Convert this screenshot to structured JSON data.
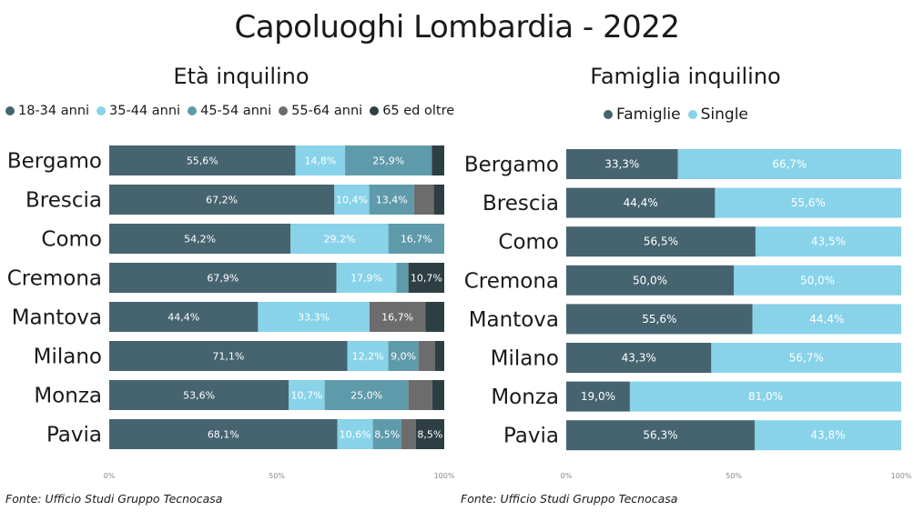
{
  "page": {
    "title": "Capoluoghi Lombardia - 2022"
  },
  "sources": {
    "left": "Fonte: Ufficio Studi Gruppo Tecnocasa",
    "right": "Fonte: Ufficio Studi Gruppo Tecnocasa"
  },
  "chart_data": [
    {
      "type": "bar",
      "orientation": "horizontal",
      "stacked": "percent",
      "title": "Età inquilino",
      "legend_position": "top",
      "categories": [
        "Bergamo",
        "Brescia",
        "Como",
        "Cremona",
        "Mantova",
        "Milano",
        "Monza",
        "Pavia"
      ],
      "series": [
        {
          "name": "18-34 anni",
          "color": "#466470",
          "values": [
            55.6,
            67.2,
            54.2,
            67.9,
            44.4,
            71.1,
            53.6,
            68.1
          ],
          "labels": [
            "55,6%",
            "67,2%",
            "54,2%",
            "67,9%",
            "44,4%",
            "71,1%",
            "53,6%",
            "68,1%"
          ]
        },
        {
          "name": "35-44 anni",
          "color": "#88d3e9",
          "values": [
            14.8,
            10.4,
            29.2,
            17.9,
            33.3,
            12.2,
            10.7,
            10.6
          ],
          "labels": [
            "14,8%",
            "10,4%",
            "29,2%",
            "17,9%",
            "33,3%",
            "12,2%",
            "10,7%",
            "10,6%"
          ]
        },
        {
          "name": "45-54 anni",
          "color": "#5f9aaa",
          "values": [
            25.9,
            13.4,
            16.7,
            3.6,
            0,
            9.0,
            25.0,
            8.5
          ],
          "labels": [
            "25,9%",
            "13,4%",
            "16,7%",
            "",
            "",
            "9,0%",
            "25,0%",
            "8,5%"
          ]
        },
        {
          "name": "55-64 anni",
          "color": "#6c6c6c",
          "values": [
            0,
            5.9,
            0,
            0,
            16.7,
            4.9,
            7.1,
            4.3
          ],
          "labels": [
            "",
            "",
            "",
            "",
            "16,7%",
            "",
            "",
            ""
          ]
        },
        {
          "name": "65 ed oltre",
          "color": "#2e3f44",
          "values": [
            3.7,
            3.1,
            0,
            10.7,
            5.6,
            2.8,
            3.6,
            8.5
          ],
          "labels": [
            "",
            "",
            "",
            "10,7%",
            "",
            "",
            "",
            "8,5%"
          ]
        }
      ],
      "x_ticks": [
        "0%",
        "50%",
        "100%"
      ],
      "xlim": [
        0,
        100
      ],
      "grid": false
    },
    {
      "type": "bar",
      "orientation": "horizontal",
      "stacked": "percent",
      "title": "Famiglia inquilino",
      "legend_position": "top",
      "categories": [
        "Bergamo",
        "Brescia",
        "Como",
        "Cremona",
        "Mantova",
        "Milano",
        "Monza",
        "Pavia"
      ],
      "series": [
        {
          "name": "Famiglie",
          "color": "#466470",
          "values": [
            33.3,
            44.4,
            56.5,
            50.0,
            55.6,
            43.3,
            19.0,
            56.3
          ],
          "labels": [
            "33,3%",
            "44,4%",
            "56,5%",
            "50,0%",
            "55,6%",
            "43,3%",
            "19,0%",
            "56,3%"
          ]
        },
        {
          "name": "Single",
          "color": "#88d3e9",
          "values": [
            66.7,
            55.6,
            43.5,
            50.0,
            44.4,
            56.7,
            81.0,
            43.8
          ],
          "labels": [
            "66,7%",
            "55,6%",
            "43,5%",
            "50,0%",
            "44,4%",
            "56,7%",
            "81,0%",
            "43,8%"
          ]
        }
      ],
      "x_ticks": [
        "0%",
        "50%",
        "100%"
      ],
      "xlim": [
        0,
        100
      ],
      "grid": false
    }
  ]
}
